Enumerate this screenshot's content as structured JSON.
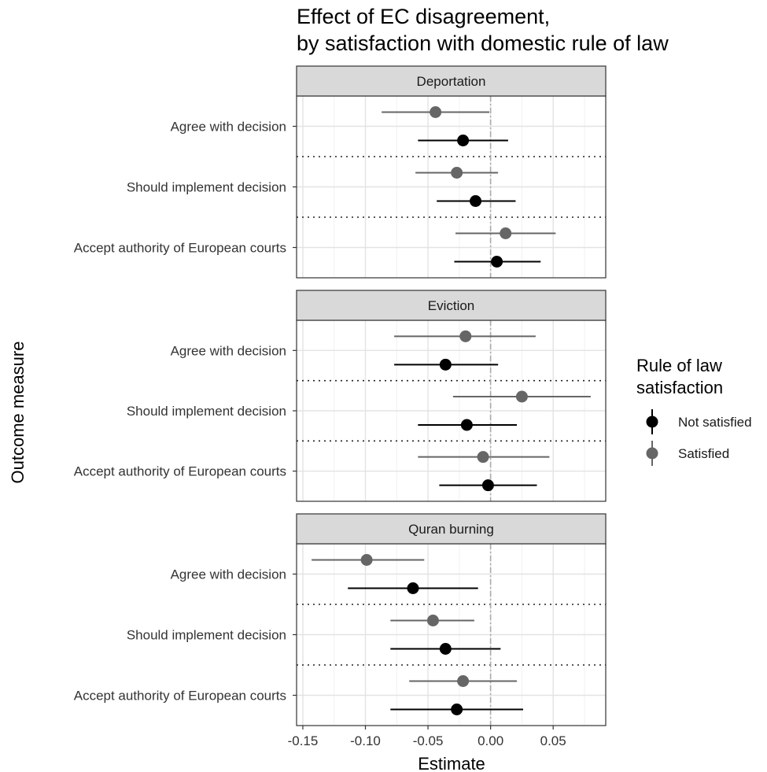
{
  "chart_data": {
    "type": "scatter",
    "title": "Effect of EC disagreement,",
    "subtitle": "by satisfaction with domestic rule of law",
    "xlabel": "Estimate",
    "ylabel": "Outcome measure",
    "xlim": [
      -0.155,
      0.092
    ],
    "xticks": [
      -0.15,
      -0.1,
      -0.05,
      0.0,
      0.05
    ],
    "xtick_labels": [
      "-0.15",
      "-0.10",
      "-0.05",
      "0.00",
      "0.05"
    ],
    "reference_line_x": 0,
    "grid": true,
    "legend": {
      "title_line1": "Rule of law",
      "title_line2": "satisfaction",
      "position": "right",
      "entries": [
        {
          "name": "Not satisfied",
          "color": "#000000"
        },
        {
          "name": "Satisfied",
          "color": "#666666"
        }
      ]
    },
    "outcomes": [
      "Agree with decision",
      "Should implement decision",
      "Accept authority of European courts"
    ],
    "series_colors": {
      "Not satisfied": "#000000",
      "Satisfied": "#666666"
    },
    "facets": [
      {
        "name": "Deportation",
        "rows": [
          {
            "outcome": "Agree with decision",
            "group": "Satisfied",
            "estimate": -0.044,
            "low": -0.087,
            "high": -0.001
          },
          {
            "outcome": "Agree with decision",
            "group": "Not satisfied",
            "estimate": -0.022,
            "low": -0.058,
            "high": 0.014
          },
          {
            "outcome": "Should implement decision",
            "group": "Satisfied",
            "estimate": -0.027,
            "low": -0.06,
            "high": 0.006
          },
          {
            "outcome": "Should implement decision",
            "group": "Not satisfied",
            "estimate": -0.012,
            "low": -0.043,
            "high": 0.02
          },
          {
            "outcome": "Accept authority of European courts",
            "group": "Satisfied",
            "estimate": 0.012,
            "low": -0.028,
            "high": 0.052
          },
          {
            "outcome": "Accept authority of European courts",
            "group": "Not satisfied",
            "estimate": 0.005,
            "low": -0.029,
            "high": 0.04
          }
        ]
      },
      {
        "name": "Eviction",
        "rows": [
          {
            "outcome": "Agree with decision",
            "group": "Satisfied",
            "estimate": -0.02,
            "low": -0.077,
            "high": 0.036
          },
          {
            "outcome": "Agree with decision",
            "group": "Not satisfied",
            "estimate": -0.036,
            "low": -0.077,
            "high": 0.006
          },
          {
            "outcome": "Should implement decision",
            "group": "Satisfied",
            "estimate": 0.025,
            "low": -0.03,
            "high": 0.08
          },
          {
            "outcome": "Should implement decision",
            "group": "Not satisfied",
            "estimate": -0.019,
            "low": -0.058,
            "high": 0.021
          },
          {
            "outcome": "Accept authority of European courts",
            "group": "Satisfied",
            "estimate": -0.006,
            "low": -0.058,
            "high": 0.047
          },
          {
            "outcome": "Accept authority of European courts",
            "group": "Not satisfied",
            "estimate": -0.002,
            "low": -0.041,
            "high": 0.037
          }
        ]
      },
      {
        "name": "Quran burning",
        "rows": [
          {
            "outcome": "Agree with decision",
            "group": "Satisfied",
            "estimate": -0.099,
            "low": -0.143,
            "high": -0.053
          },
          {
            "outcome": "Agree with decision",
            "group": "Not satisfied",
            "estimate": -0.062,
            "low": -0.114,
            "high": -0.01
          },
          {
            "outcome": "Should implement decision",
            "group": "Satisfied",
            "estimate": -0.046,
            "low": -0.08,
            "high": -0.013
          },
          {
            "outcome": "Should implement decision",
            "group": "Not satisfied",
            "estimate": -0.036,
            "low": -0.08,
            "high": 0.008
          },
          {
            "outcome": "Accept authority of European courts",
            "group": "Satisfied",
            "estimate": -0.022,
            "low": -0.065,
            "high": 0.021
          },
          {
            "outcome": "Accept authority of European courts",
            "group": "Not satisfied",
            "estimate": -0.027,
            "low": -0.08,
            "high": 0.026
          }
        ]
      }
    ]
  }
}
